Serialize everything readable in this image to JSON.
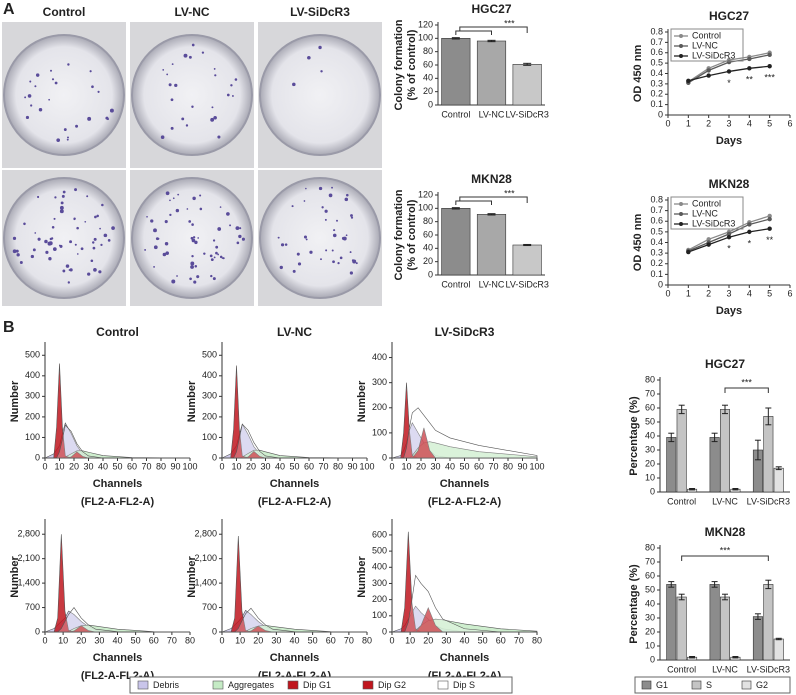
{
  "panel_labels": [
    "A",
    "B"
  ],
  "photo_panel": {
    "labels": [
      "Control",
      "LV-NC",
      "LV-SiDcR3"
    ]
  },
  "flow_legend": [
    {
      "name": "Debris",
      "color": "#c9c5ea"
    },
    {
      "name": "Aggregates",
      "color": "#c5ebc5"
    },
    {
      "name": "Dip G1",
      "color": "#c0161e"
    },
    {
      "name": "Dip G2",
      "color": "#c0161e"
    },
    {
      "name": "Dip S",
      "color": "#ffffff"
    }
  ],
  "chart_data": [
    {
      "type": "bar",
      "title": "HGC27",
      "ylabel": [
        "Colony formation",
        "(% of control)"
      ],
      "categories": [
        "Control",
        "LV-NC",
        "LV-SiDcR3"
      ],
      "values": [
        100,
        96,
        61
      ],
      "errors": [
        1,
        1,
        1.5
      ],
      "colors": [
        "#8c8c8c",
        "#a8a8a8",
        "#c8c8c8"
      ],
      "ylim": [
        0,
        120
      ],
      "yticks": [
        0,
        20,
        40,
        60,
        80,
        100,
        120
      ],
      "annotation": "***"
    },
    {
      "type": "bar",
      "title": "MKN28",
      "ylabel": [
        "Colony formation",
        "(% of control)"
      ],
      "categories": [
        "Control",
        "LV-NC",
        "LV-SiDcR3"
      ],
      "values": [
        100,
        91,
        45
      ],
      "errors": [
        1,
        1,
        0.8
      ],
      "colors": [
        "#8c8c8c",
        "#a8a8a8",
        "#c8c8c8"
      ],
      "ylim": [
        0,
        120
      ],
      "yticks": [
        0,
        20,
        40,
        60,
        80,
        100,
        120
      ],
      "annotation": "***"
    },
    {
      "type": "line",
      "title": "HGC27",
      "xlabel": "Days",
      "ylabel": "OD 450 nm",
      "x": [
        1,
        2,
        3,
        4,
        5
      ],
      "xlim": [
        0,
        6
      ],
      "xticks": [
        0,
        1,
        2,
        3,
        4,
        5,
        6
      ],
      "ylim": [
        0,
        0.8
      ],
      "yticks": [
        0,
        0.1,
        0.2,
        0.3,
        0.4,
        0.5,
        0.6,
        0.7,
        0.8
      ],
      "series": [
        {
          "name": "Control",
          "color": "#8a8a8a",
          "values": [
            0.32,
            0.45,
            0.53,
            0.56,
            0.6
          ]
        },
        {
          "name": "LV-NC",
          "color": "#5a5a5a",
          "values": [
            0.31,
            0.43,
            0.51,
            0.54,
            0.58
          ]
        },
        {
          "name": "LV-SiDcR3",
          "color": "#222222",
          "values": [
            0.33,
            0.38,
            0.42,
            0.45,
            0.47
          ]
        }
      ],
      "annotations": [
        "*",
        "**",
        "***"
      ]
    },
    {
      "type": "line",
      "title": "MKN28",
      "xlabel": "Days",
      "ylabel": "OD 450 nm",
      "x": [
        1,
        2,
        3,
        4,
        5
      ],
      "xlim": [
        0,
        6
      ],
      "xticks": [
        0,
        1,
        2,
        3,
        4,
        5,
        6
      ],
      "ylim": [
        0,
        0.8
      ],
      "yticks": [
        0,
        0.1,
        0.2,
        0.3,
        0.4,
        0.5,
        0.6,
        0.7,
        0.8
      ],
      "series": [
        {
          "name": "Control",
          "color": "#8a8a8a",
          "values": [
            0.33,
            0.43,
            0.5,
            0.59,
            0.65
          ]
        },
        {
          "name": "LV-NC",
          "color": "#5a5a5a",
          "values": [
            0.32,
            0.4,
            0.48,
            0.57,
            0.62
          ]
        },
        {
          "name": "LV-SiDcR3",
          "color": "#222222",
          "values": [
            0.31,
            0.38,
            0.45,
            0.5,
            0.53
          ]
        }
      ],
      "annotations": [
        "*",
        "*",
        "**"
      ]
    },
    {
      "type": "area",
      "title": "Control",
      "xlabel": [
        "Channels",
        "(FL2-A-FL2-A)"
      ],
      "ylabel": "Number",
      "x": [
        0,
        6,
        8,
        10,
        12,
        14,
        18,
        22,
        26,
        30,
        40,
        60,
        100
      ],
      "xlim": [
        0,
        100
      ],
      "xticks": [
        0,
        10,
        20,
        30,
        40,
        50,
        60,
        70,
        80,
        90,
        100
      ],
      "ylim": [
        0,
        550
      ],
      "yticks": [
        0,
        100,
        200,
        300,
        400,
        500
      ],
      "series": [
        {
          "color": "#c9c5ea",
          "values": [
            0,
            20,
            40,
            60,
            120,
            170,
            120,
            60,
            20,
            5,
            0,
            0,
            0
          ]
        },
        {
          "color": "#c5ebc5",
          "values": [
            0,
            0,
            0,
            0,
            0,
            5,
            20,
            35,
            35,
            28,
            12,
            2,
            0
          ]
        },
        {
          "color": "#c0161e",
          "values": [
            0,
            0,
            150,
            460,
            150,
            10,
            0,
            0,
            0,
            0,
            0,
            0,
            0
          ]
        },
        {
          "color": "#c0161e",
          "values": [
            0,
            0,
            0,
            0,
            0,
            0,
            5,
            30,
            8,
            0,
            0,
            0,
            0
          ]
        },
        {
          "color": "#ffffff",
          "values": [
            0,
            0,
            0,
            30,
            90,
            160,
            130,
            70,
            30,
            10,
            0,
            0,
            0
          ]
        }
      ]
    },
    {
      "type": "area",
      "title": "LV-NC",
      "xlabel": [
        "Channels",
        "(FL2-A-FL2-A)"
      ],
      "ylabel": "Number",
      "x": [
        0,
        6,
        8,
        10,
        12,
        14,
        18,
        22,
        26,
        30,
        40,
        60,
        100
      ],
      "xlim": [
        0,
        100
      ],
      "xticks": [
        0,
        10,
        20,
        30,
        40,
        50,
        60,
        70,
        80,
        90,
        100
      ],
      "ylim": [
        0,
        550
      ],
      "yticks": [
        0,
        100,
        200,
        300,
        400,
        500
      ],
      "series": [
        {
          "color": "#c9c5ea",
          "values": [
            0,
            20,
            40,
            60,
            115,
            165,
            115,
            55,
            20,
            5,
            0,
            0,
            0
          ]
        },
        {
          "color": "#c5ebc5",
          "values": [
            0,
            0,
            0,
            0,
            0,
            5,
            22,
            38,
            38,
            30,
            12,
            2,
            0
          ]
        },
        {
          "color": "#c0161e",
          "values": [
            0,
            0,
            140,
            450,
            140,
            10,
            0,
            0,
            0,
            0,
            0,
            0,
            0
          ]
        },
        {
          "color": "#c0161e",
          "values": [
            0,
            0,
            0,
            0,
            0,
            0,
            5,
            32,
            8,
            0,
            0,
            0,
            0
          ]
        },
        {
          "color": "#ffffff",
          "values": [
            0,
            0,
            0,
            30,
            95,
            165,
            135,
            75,
            32,
            10,
            0,
            0,
            0
          ]
        }
      ]
    },
    {
      "type": "area",
      "title": "LV-SiDcR3",
      "xlabel": [
        "Channels",
        "(FL2-A-FL2-A)"
      ],
      "ylabel": "Number",
      "x": [
        0,
        6,
        8,
        10,
        12,
        14,
        18,
        22,
        26,
        30,
        40,
        60,
        100
      ],
      "xlim": [
        0,
        100
      ],
      "xticks": [
        0,
        10,
        20,
        30,
        40,
        50,
        60,
        70,
        80,
        90,
        100
      ],
      "ylim": [
        0,
        450
      ],
      "yticks": [
        0,
        100,
        200,
        300,
        400
      ],
      "series": [
        {
          "color": "#c9c5ea",
          "values": [
            0,
            10,
            30,
            60,
            110,
            140,
            100,
            60,
            30,
            10,
            0,
            0,
            0
          ]
        },
        {
          "color": "#c5ebc5",
          "values": [
            0,
            0,
            0,
            0,
            0,
            10,
            40,
            60,
            65,
            60,
            45,
            25,
            5
          ]
        },
        {
          "color": "#c0161e",
          "values": [
            0,
            0,
            100,
            300,
            110,
            10,
            0,
            0,
            0,
            0,
            0,
            0,
            0
          ]
        },
        {
          "color": "#c0161e",
          "values": [
            0,
            0,
            0,
            0,
            0,
            0,
            30,
            120,
            30,
            0,
            0,
            0,
            0
          ]
        },
        {
          "color": "#ffffff",
          "values": [
            0,
            0,
            0,
            40,
            120,
            180,
            200,
            170,
            140,
            110,
            80,
            50,
            10
          ]
        }
      ]
    },
    {
      "type": "area",
      "xlabel": [
        "Channels",
        "(FL2-A-FL2-A)"
      ],
      "ylabel": "Number",
      "x": [
        0,
        5,
        7,
        9,
        11,
        13,
        16,
        20,
        24,
        28,
        40,
        60,
        80
      ],
      "xlim": [
        0,
        80
      ],
      "xticks": [
        0,
        10,
        20,
        30,
        40,
        50,
        60,
        70,
        80
      ],
      "ylim": [
        0,
        3150
      ],
      "yticks": [
        0,
        700,
        {
          "value": 1400,
          "label": "1,400"
        },
        {
          "value": 2100,
          "label": "2,100"
        },
        {
          "value": 2800,
          "label": "2,800"
        }
      ],
      "series": [
        {
          "color": "#c9c5ea",
          "values": [
            0,
            100,
            200,
            300,
            400,
            600,
            500,
            300,
            150,
            60,
            0,
            0,
            0
          ]
        },
        {
          "color": "#c5ebc5",
          "values": [
            0,
            0,
            0,
            0,
            0,
            20,
            100,
            180,
            200,
            170,
            80,
            10,
            0
          ]
        },
        {
          "color": "#c0161e",
          "values": [
            0,
            0,
            400,
            2800,
            600,
            50,
            0,
            0,
            0,
            0,
            0,
            0,
            0
          ]
        },
        {
          "color": "#c0161e",
          "values": [
            0,
            0,
            0,
            0,
            0,
            0,
            30,
            180,
            40,
            0,
            0,
            0,
            0
          ]
        },
        {
          "color": "#ffffff",
          "values": [
            0,
            0,
            0,
            100,
            300,
            500,
            700,
            400,
            200,
            80,
            10,
            0,
            0
          ]
        }
      ]
    },
    {
      "type": "area",
      "xlabel": [
        "Channels",
        "(FL2-A-FL2-A)"
      ],
      "ylabel": "Number",
      "x": [
        0,
        5,
        7,
        9,
        11,
        13,
        16,
        20,
        24,
        28,
        40,
        60,
        80
      ],
      "xlim": [
        0,
        80
      ],
      "xticks": [
        0,
        10,
        20,
        30,
        40,
        50,
        60,
        70,
        80
      ],
      "ylim": [
        0,
        3150
      ],
      "yticks": [
        0,
        700,
        {
          "value": 1400,
          "label": "1,400"
        },
        {
          "value": 2100,
          "label": "2,100"
        },
        {
          "value": 2800,
          "label": "2,800"
        }
      ],
      "series": [
        {
          "color": "#c9c5ea",
          "values": [
            0,
            100,
            200,
            300,
            420,
            620,
            500,
            300,
            150,
            60,
            0,
            0,
            0
          ]
        },
        {
          "color": "#c5ebc5",
          "values": [
            0,
            0,
            0,
            0,
            0,
            20,
            100,
            170,
            190,
            160,
            80,
            10,
            0
          ]
        },
        {
          "color": "#c0161e",
          "values": [
            0,
            0,
            400,
            2750,
            600,
            50,
            0,
            0,
            0,
            0,
            0,
            0,
            0
          ]
        },
        {
          "color": "#c0161e",
          "values": [
            0,
            0,
            0,
            0,
            0,
            0,
            30,
            170,
            40,
            0,
            0,
            0,
            0
          ]
        },
        {
          "color": "#ffffff",
          "values": [
            0,
            0,
            0,
            100,
            320,
            520,
            680,
            400,
            200,
            80,
            10,
            0,
            0
          ]
        }
      ]
    },
    {
      "type": "area",
      "xlabel": [
        "Channels",
        "(FL2-A-FL2-A)"
      ],
      "ylabel": "Number",
      "x": [
        0,
        5,
        7,
        9,
        11,
        13,
        16,
        20,
        24,
        28,
        40,
        60,
        80
      ],
      "xlim": [
        0,
        80
      ],
      "xticks": [
        0,
        10,
        20,
        30,
        40,
        50,
        60,
        70,
        80
      ],
      "ylim": [
        0,
        680
      ],
      "yticks": [
        0,
        100,
        200,
        300,
        400,
        500,
        600
      ],
      "series": [
        {
          "color": "#c9c5ea",
          "values": [
            0,
            20,
            40,
            80,
            120,
            160,
            120,
            80,
            40,
            20,
            0,
            0,
            0
          ]
        },
        {
          "color": "#c5ebc5",
          "values": [
            0,
            0,
            0,
            0,
            0,
            10,
            40,
            70,
            80,
            75,
            50,
            20,
            5
          ]
        },
        {
          "color": "#c0161e",
          "values": [
            0,
            0,
            150,
            620,
            180,
            20,
            0,
            0,
            0,
            0,
            0,
            0,
            0
          ]
        },
        {
          "color": "#c0161e",
          "values": [
            0,
            0,
            0,
            0,
            0,
            0,
            40,
            150,
            40,
            0,
            0,
            0,
            0
          ]
        },
        {
          "color": "#ffffff",
          "values": [
            0,
            0,
            0,
            60,
            200,
            350,
            300,
            250,
            150,
            80,
            20,
            0,
            0
          ]
        }
      ]
    },
    {
      "type": "bar",
      "title": "HGC27",
      "ylabel": "Percentage (%)",
      "categories": [
        "Control",
        "LV-NC",
        "LV-SiDcR3"
      ],
      "ylim": [
        0,
        80
      ],
      "yticks": [
        0,
        10,
        20,
        30,
        40,
        50,
        60,
        70,
        80
      ],
      "series": [
        {
          "color": "#8c8c8c",
          "values": [
            39,
            39,
            30
          ],
          "errors": [
            3,
            3,
            7
          ]
        },
        {
          "color": "#c4c4c4",
          "values": [
            59,
            59,
            54
          ],
          "errors": [
            3,
            3,
            6
          ]
        },
        {
          "color": "#e2e2e2",
          "values": [
            2,
            2,
            17
          ],
          "errors": [
            0.5,
            0.5,
            1
          ]
        }
      ],
      "annotation": "***"
    },
    {
      "type": "bar",
      "title": "MKN28",
      "ylabel": "Percentage (%)",
      "categories": [
        "Control",
        "LV-NC",
        "LV-SiDcR3"
      ],
      "ylim": [
        0,
        80
      ],
      "yticks": [
        0,
        10,
        20,
        30,
        40,
        50,
        60,
        70,
        80
      ],
      "series": [
        {
          "name": "G1",
          "color": "#8c8c8c",
          "values": [
            54,
            54,
            31
          ],
          "errors": [
            2,
            2,
            2
          ]
        },
        {
          "name": "S",
          "color": "#c4c4c4",
          "values": [
            45,
            45,
            54
          ],
          "errors": [
            2,
            2,
            3
          ]
        },
        {
          "name": "G2",
          "color": "#e2e2e2",
          "values": [
            2,
            2,
            15
          ],
          "errors": [
            0.5,
            0.5,
            0.5
          ]
        }
      ],
      "annotation": "***"
    }
  ]
}
